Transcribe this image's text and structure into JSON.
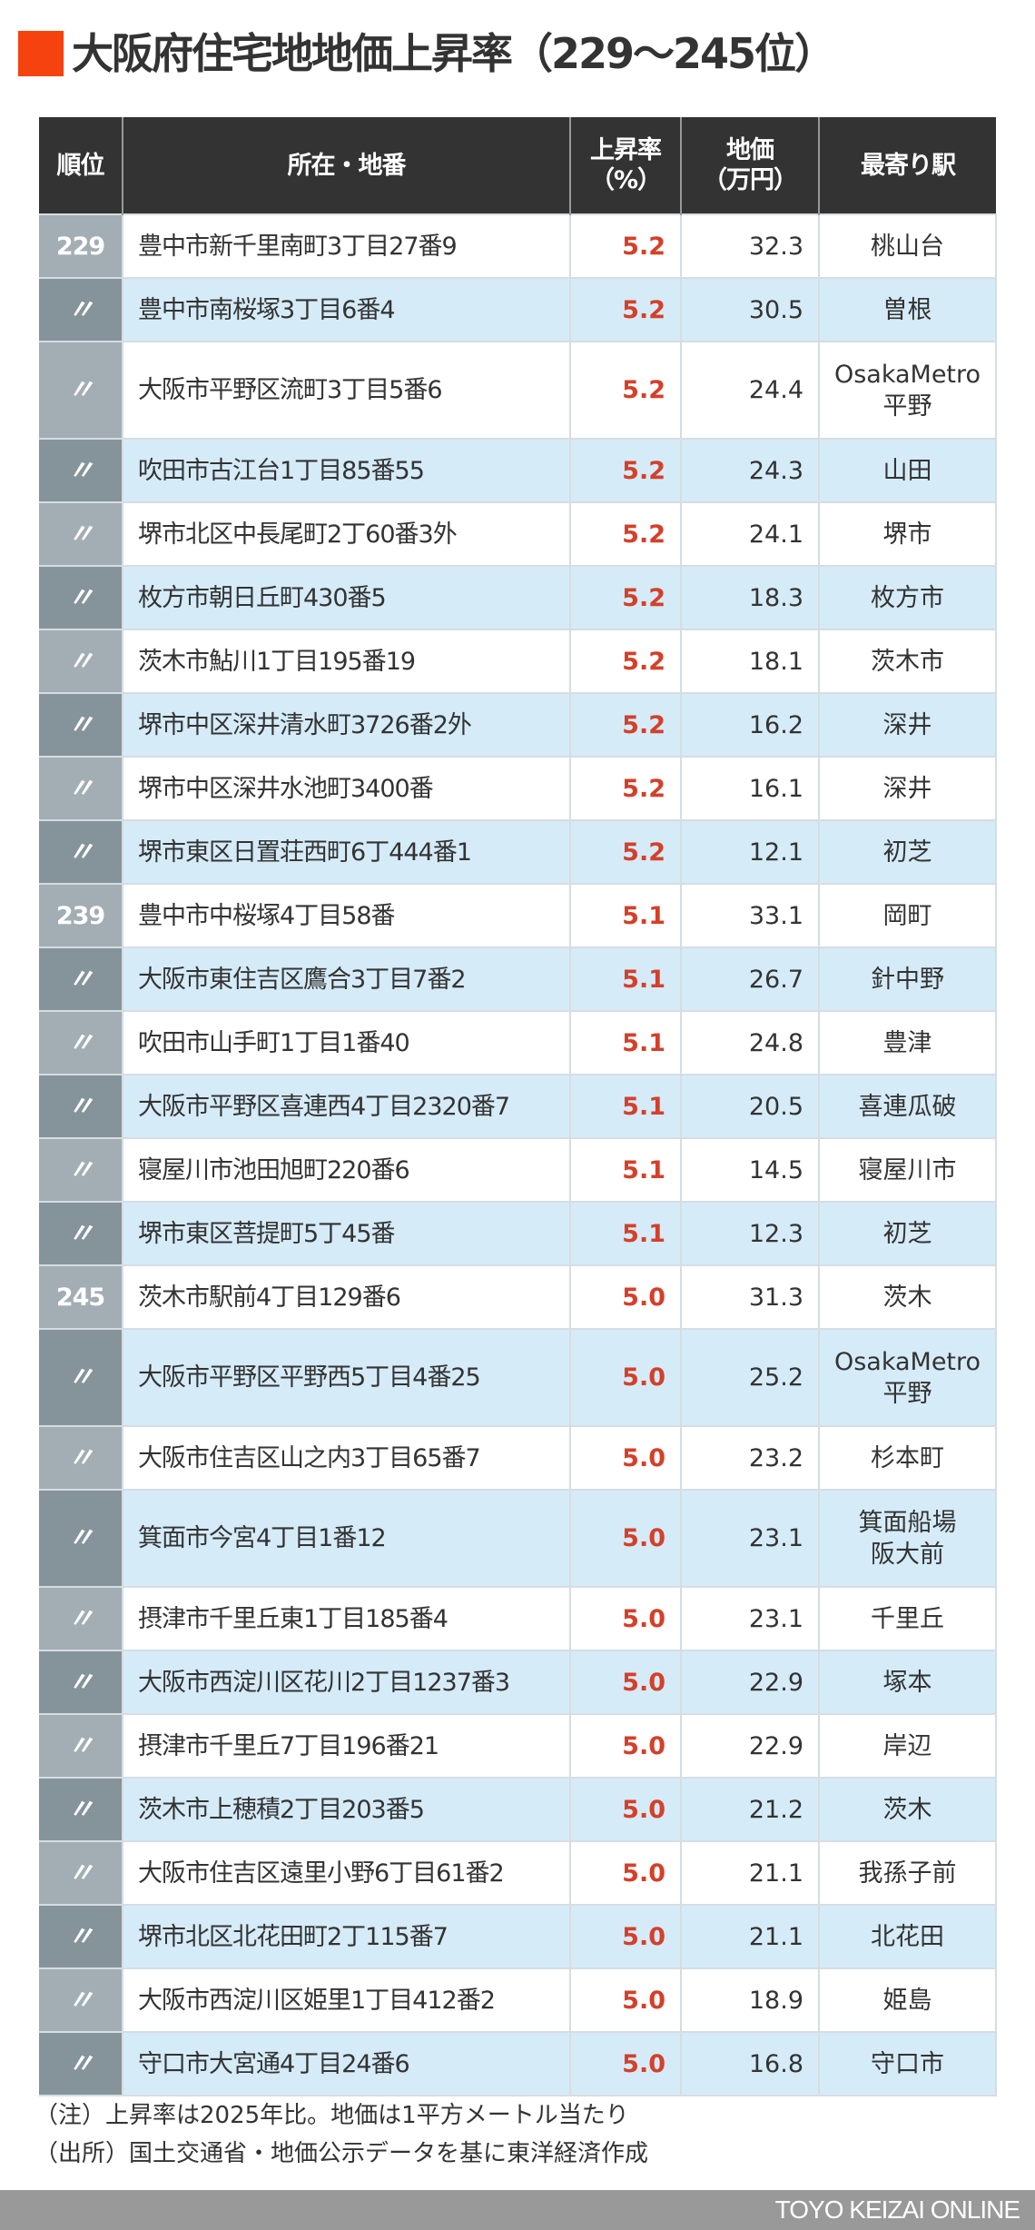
{
  "title": {
    "marker_color": "#f5420f",
    "text": "大阪府住宅地地価上昇率（229〜245位）"
  },
  "table": {
    "headers": {
      "rank": "順位",
      "location": "所在・地番",
      "rate_line1": "上昇率",
      "rate_line2": "（%）",
      "price_line1": "地価",
      "price_line2": "（万円）",
      "station": "最寄り駅"
    },
    "rows": [
      {
        "rank": "229",
        "location": "豊中市新千里南町3丁目27番9",
        "rate": "5.2",
        "price": "32.3",
        "station_line1": "桃山台",
        "station_line2": ""
      },
      {
        "rank": "〃",
        "location": "豊中市南桜塚3丁目6番4",
        "rate": "5.2",
        "price": "30.5",
        "station_line1": "曽根",
        "station_line2": ""
      },
      {
        "rank": "〃",
        "location": "大阪市平野区流町3丁目5番6",
        "rate": "5.2",
        "price": "24.4",
        "station_line1": "OsakaMetro",
        "station_line2": "平野"
      },
      {
        "rank": "〃",
        "location": "吹田市古江台1丁目85番55",
        "rate": "5.2",
        "price": "24.3",
        "station_line1": "山田",
        "station_line2": ""
      },
      {
        "rank": "〃",
        "location": "堺市北区中長尾町2丁60番3外",
        "rate": "5.2",
        "price": "24.1",
        "station_line1": "堺市",
        "station_line2": ""
      },
      {
        "rank": "〃",
        "location": "枚方市朝日丘町430番5",
        "rate": "5.2",
        "price": "18.3",
        "station_line1": "枚方市",
        "station_line2": ""
      },
      {
        "rank": "〃",
        "location": "茨木市鮎川1丁目195番19",
        "rate": "5.2",
        "price": "18.1",
        "station_line1": "茨木市",
        "station_line2": ""
      },
      {
        "rank": "〃",
        "location": "堺市中区深井清水町3726番2外",
        "rate": "5.2",
        "price": "16.2",
        "station_line1": "深井",
        "station_line2": ""
      },
      {
        "rank": "〃",
        "location": "堺市中区深井水池町3400番",
        "rate": "5.2",
        "price": "16.1",
        "station_line1": "深井",
        "station_line2": ""
      },
      {
        "rank": "〃",
        "location": "堺市東区日置荘西町6丁444番1",
        "rate": "5.2",
        "price": "12.1",
        "station_line1": "初芝",
        "station_line2": ""
      },
      {
        "rank": "239",
        "location": "豊中市中桜塚4丁目58番",
        "rate": "5.1",
        "price": "33.1",
        "station_line1": "岡町",
        "station_line2": ""
      },
      {
        "rank": "〃",
        "location": "大阪市東住吉区鷹合3丁目7番2",
        "rate": "5.1",
        "price": "26.7",
        "station_line1": "針中野",
        "station_line2": ""
      },
      {
        "rank": "〃",
        "location": "吹田市山手町1丁目1番40",
        "rate": "5.1",
        "price": "24.8",
        "station_line1": "豊津",
        "station_line2": ""
      },
      {
        "rank": "〃",
        "location": "大阪市平野区喜連西4丁目2320番7",
        "rate": "5.1",
        "price": "20.5",
        "station_line1": "喜連瓜破",
        "station_line2": ""
      },
      {
        "rank": "〃",
        "location": "寝屋川市池田旭町220番6",
        "rate": "5.1",
        "price": "14.5",
        "station_line1": "寝屋川市",
        "station_line2": ""
      },
      {
        "rank": "〃",
        "location": "堺市東区菩提町5丁45番",
        "rate": "5.1",
        "price": "12.3",
        "station_line1": "初芝",
        "station_line2": ""
      },
      {
        "rank": "245",
        "location": "茨木市駅前4丁目129番6",
        "rate": "5.0",
        "price": "31.3",
        "station_line1": "茨木",
        "station_line2": ""
      },
      {
        "rank": "〃",
        "location": "大阪市平野区平野西5丁目4番25",
        "rate": "5.0",
        "price": "25.2",
        "station_line1": "OsakaMetro",
        "station_line2": "平野"
      },
      {
        "rank": "〃",
        "location": "大阪市住吉区山之内3丁目65番7",
        "rate": "5.0",
        "price": "23.2",
        "station_line1": "杉本町",
        "station_line2": ""
      },
      {
        "rank": "〃",
        "location": "箕面市今宮4丁目1番12",
        "rate": "5.0",
        "price": "23.1",
        "station_line1": "箕面船場",
        "station_line2": "阪大前"
      },
      {
        "rank": "〃",
        "location": "摂津市千里丘東1丁目185番4",
        "rate": "5.0",
        "price": "23.1",
        "station_line1": "千里丘",
        "station_line2": ""
      },
      {
        "rank": "〃",
        "location": "大阪市西淀川区花川2丁目1237番3",
        "rate": "5.0",
        "price": "22.9",
        "station_line1": "塚本",
        "station_line2": ""
      },
      {
        "rank": "〃",
        "location": "摂津市千里丘7丁目196番21",
        "rate": "5.0",
        "price": "22.9",
        "station_line1": "岸辺",
        "station_line2": ""
      },
      {
        "rank": "〃",
        "location": "茨木市上穂積2丁目203番5",
        "rate": "5.0",
        "price": "21.2",
        "station_line1": "茨木",
        "station_line2": ""
      },
      {
        "rank": "〃",
        "location": "大阪市住吉区遠里小野6丁目61番2",
        "rate": "5.0",
        "price": "21.1",
        "station_line1": "我孫子前",
        "station_line2": ""
      },
      {
        "rank": "〃",
        "location": "堺市北区北花田町2丁115番7",
        "rate": "5.0",
        "price": "21.1",
        "station_line1": "北花田",
        "station_line2": ""
      },
      {
        "rank": "〃",
        "location": "大阪市西淀川区姫里1丁目412番2",
        "rate": "5.0",
        "price": "18.9",
        "station_line1": "姫島",
        "station_line2": ""
      },
      {
        "rank": "〃",
        "location": "守口市大宮通4丁目24番6",
        "rate": "5.0",
        "price": "16.8",
        "station_line1": "守口市",
        "station_line2": ""
      }
    ]
  },
  "notes": {
    "note": "（注）上昇率は2025年比。地価は1平方メートル当たり",
    "source": "（出所）国土交通省・地価公示データを基に東洋経済作成"
  },
  "footer": {
    "brand": "TOYO KEIZAI ONLINE"
  },
  "colors": {
    "header_bg": "#333333",
    "rate_red": "#d4402a",
    "row_blue": "#d5ebf8",
    "rank_light": "#a3adb4",
    "rank_dark": "#85939b",
    "footer_gray": "#999999"
  }
}
